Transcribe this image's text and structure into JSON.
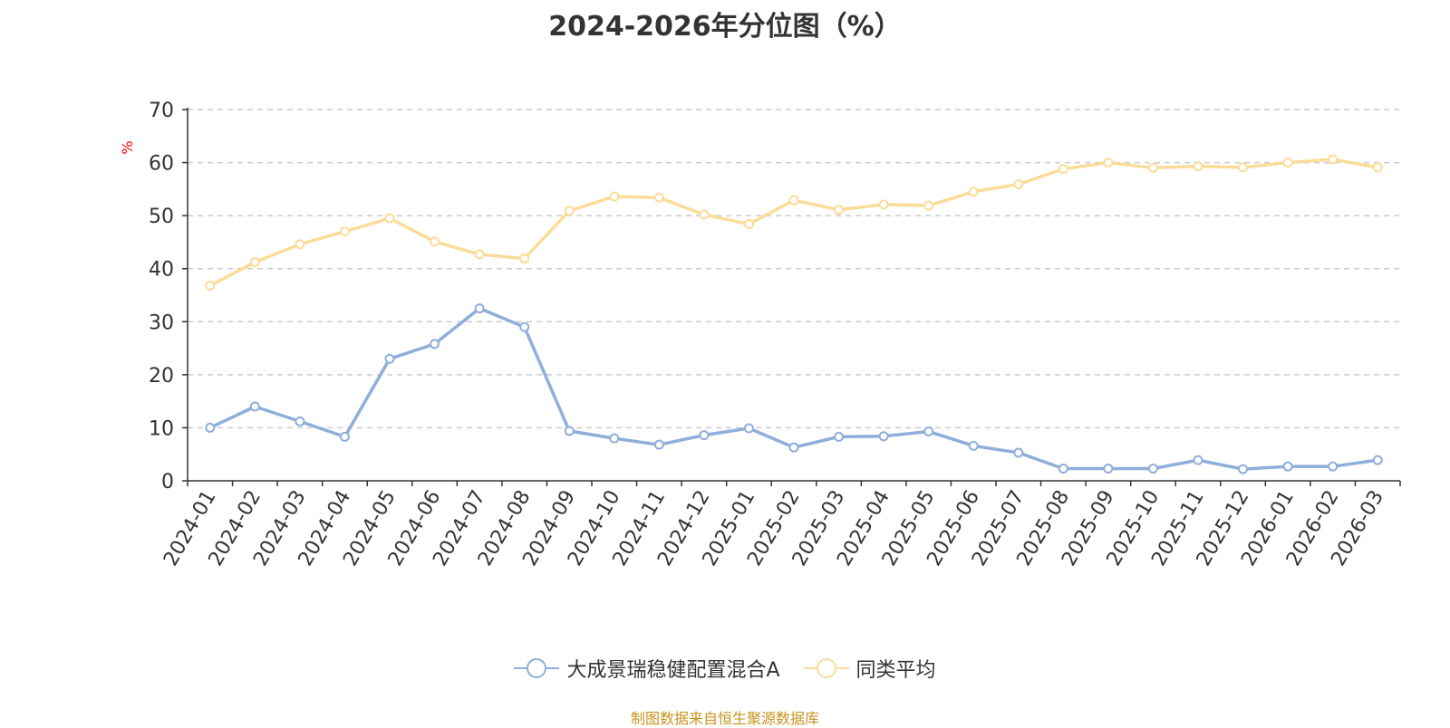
{
  "chart_data": {
    "type": "line",
    "title": "2024-2026年分位图（%）",
    "ylabel": "%",
    "xlabel": "",
    "ylim": [
      0,
      70
    ],
    "yticks": [
      0,
      10,
      20,
      30,
      40,
      50,
      60,
      70
    ],
    "grid": true,
    "legend_position": "bottom",
    "categories": [
      "2024-01",
      "2024-02",
      "2024-03",
      "2024-04",
      "2024-05",
      "2024-06",
      "2024-07",
      "2024-08",
      "2024-09",
      "2024-10",
      "2024-11",
      "2024-12",
      "2025-01",
      "2025-02",
      "2025-03",
      "2025-04",
      "2025-05",
      "2025-06",
      "2025-07",
      "2025-08",
      "2025-09",
      "2025-10",
      "2025-11",
      "2025-12",
      "2026-01",
      "2026-02",
      "2026-03"
    ],
    "series": [
      {
        "name": "大成景瑞稳健配置混合A",
        "color": "#8eaedb",
        "values": [
          10.0,
          14.0,
          11.2,
          8.3,
          23.0,
          25.8,
          32.5,
          29.0,
          9.4,
          8.0,
          6.8,
          8.6,
          9.9,
          6.3,
          8.3,
          8.4,
          9.3,
          6.6,
          5.3,
          2.3,
          2.3,
          2.3,
          3.9,
          2.2,
          2.7,
          2.7,
          3.9
        ]
      },
      {
        "name": "同类平均",
        "color": "#fbdc99",
        "values": [
          36.8,
          41.2,
          44.6,
          47.0,
          49.5,
          45.1,
          42.7,
          41.9,
          50.9,
          53.6,
          53.4,
          50.2,
          48.4,
          52.9,
          51.1,
          52.1,
          51.9,
          54.5,
          55.9,
          58.8,
          60.0,
          59.0,
          59.3,
          59.1,
          60.0,
          60.6,
          59.1
        ]
      }
    ]
  },
  "footer": {
    "source_text": "制图数据来自恒生聚源数据库",
    "source_color": "#c9931e"
  },
  "colors": {
    "ylabel": "#ff0000",
    "grid": "#cccccc",
    "axis": "#333333"
  }
}
